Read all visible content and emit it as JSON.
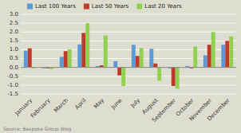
{
  "chart_data": {
    "type": "bar",
    "categories": [
      "January",
      "February",
      "March",
      "April",
      "May",
      "June",
      "July",
      "August",
      "September",
      "October",
      "November",
      "December"
    ],
    "series": [
      {
        "name": "Last 100 Years",
        "color": "#5B9BD5",
        "values": [
          0.95,
          -0.05,
          0.6,
          1.3,
          0.08,
          0.35,
          1.28,
          1.05,
          -0.05,
          0.08,
          0.68,
          1.28
        ]
      },
      {
        "name": "Last 50 Years",
        "color": "#C0392B",
        "values": [
          1.08,
          -0.05,
          0.92,
          1.95,
          0.12,
          -0.45,
          0.65,
          0.22,
          -1.05,
          -0.05,
          1.28,
          1.5
        ]
      },
      {
        "name": "Last 20 Years",
        "color": "#92D050",
        "values": [
          -0.05,
          -0.1,
          1.02,
          2.5,
          1.8,
          -1.05,
          1.1,
          -0.75,
          -1.2,
          1.18,
          2.0,
          1.75
        ]
      }
    ],
    "ylim": [
      -1.5,
      3.0
    ],
    "yticks": [
      -1.5,
      {
        "value": -1.0,
        "label": "-1.0"
      },
      -0.5,
      {
        "value": 0.0,
        "label": "0.0"
      },
      0.5,
      {
        "value": 1.0,
        "label": "1.0"
      },
      1.5,
      {
        "value": 2.0,
        "label": "2.0"
      },
      2.5,
      {
        "value": 3.0,
        "label": "3.0"
      }
    ],
    "annotations": [
      "Source: Bespoke Group Blog"
    ],
    "grid": true,
    "legend": "upper left"
  }
}
